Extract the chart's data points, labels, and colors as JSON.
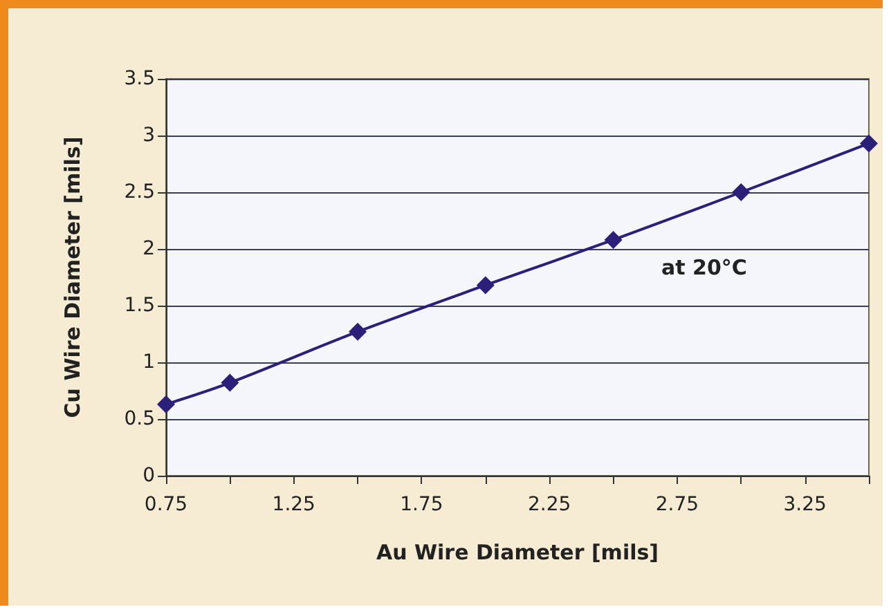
{
  "chart_data": {
    "type": "line",
    "xlabel": "Au Wire Diameter [mils]",
    "ylabel": "Cu Wire Diameter [mils]",
    "annotations": [
      "at 20°C"
    ],
    "x": [
      0.75,
      1,
      1.5,
      2,
      2.5,
      3,
      3.5
    ],
    "series": [
      {
        "color": "#2b1f7a",
        "values": [
          0.63,
          0.82,
          1.27,
          1.68,
          2.08,
          2.5,
          2.93
        ]
      }
    ],
    "xlim": [
      0.75,
      3.5
    ],
    "xticks": [
      0.75,
      {
        "value": 1,
        "label": null
      },
      1.25,
      {
        "value": 1.5,
        "label": null
      },
      1.75,
      {
        "value": 2,
        "label": null
      },
      2.25,
      {
        "value": 2.5,
        "label": null
      },
      2.75,
      {
        "value": 3,
        "label": null
      },
      3.25,
      {
        "value": 3.5,
        "label": null
      }
    ],
    "ylim": [
      0,
      3.5
    ],
    "yticks": [
      0,
      0.5,
      1,
      1.5,
      2,
      2.5,
      3,
      3.5
    ],
    "grid": "y",
    "marker": "diamond",
    "line_style": "solid"
  }
}
